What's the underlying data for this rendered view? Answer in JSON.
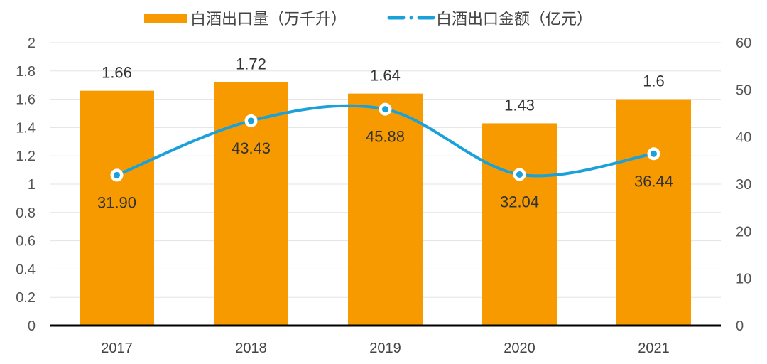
{
  "chart_data": {
    "type": "bar+line",
    "categories": [
      "2017",
      "2018",
      "2019",
      "2020",
      "2021"
    ],
    "series": [
      {
        "name": "白酒出口量（万千升）",
        "type": "bar",
        "axis": "left",
        "values": [
          1.66,
          1.72,
          1.64,
          1.43,
          1.6
        ],
        "labels": [
          "1.66",
          "1.72",
          "1.64",
          "1.43",
          "1.6"
        ],
        "color": "#F79A00"
      },
      {
        "name": "白酒出口金额（亿元）",
        "type": "line",
        "smooth": true,
        "axis": "right",
        "values": [
          31.9,
          43.43,
          45.88,
          32.04,
          36.44
        ],
        "labels": [
          "31.90",
          "43.43",
          "45.88",
          "32.04",
          "36.44"
        ],
        "color": "#1BA1D9"
      }
    ],
    "y_left": {
      "range": [
        0,
        2
      ],
      "ticks": [
        "0",
        "0.2",
        "0.4",
        "0.6",
        "0.8",
        "1",
        "1.2",
        "1.4",
        "1.6",
        "1.8",
        "2"
      ]
    },
    "y_right": {
      "range": [
        0,
        60
      ],
      "ticks": [
        "0",
        "10",
        "20",
        "30",
        "40",
        "50",
        "60"
      ]
    },
    "grid": true,
    "legend": "top"
  }
}
